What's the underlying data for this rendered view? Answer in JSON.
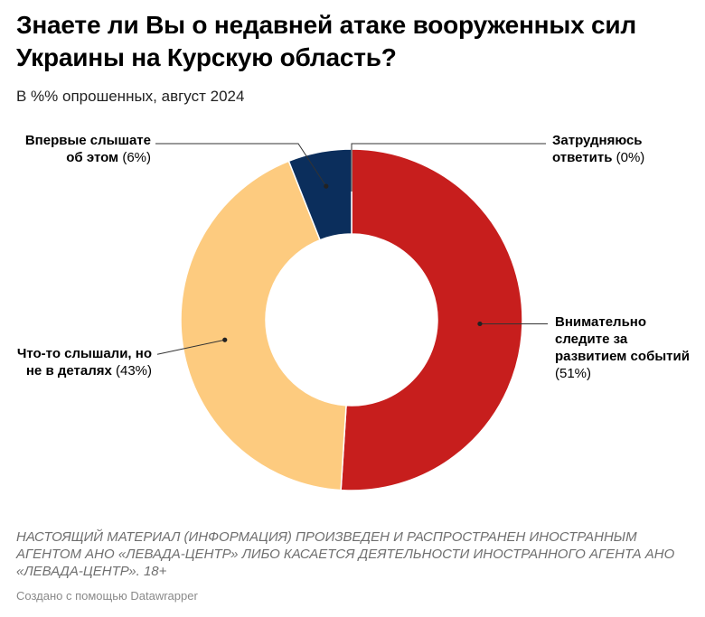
{
  "header": {
    "title": "Знаете ли Вы о недавней атаке вооруженных сил Украины на Курскую область?",
    "subtitle": "В %% опрошенных, август 2024"
  },
  "chart_data": {
    "type": "pie",
    "donut": true,
    "categories": [
      "Внимательно следите за развитием событий",
      "Что-то слышали, но не в деталях",
      "Впервые слышате об этом",
      "Затрудняюсь ответить"
    ],
    "values": [
      51,
      43,
      6,
      0
    ],
    "value_labels": [
      "(51%)",
      "(43%)",
      "(6%)",
      "(0%)"
    ],
    "label_lines": [
      [
        "Внимательно",
        "следите за",
        "развитием событий"
      ],
      [
        "Что-то слышали, но",
        "не в деталях"
      ],
      [
        "Впервые слышате",
        "об этом"
      ],
      [
        "Затрудняюсь",
        "ответить"
      ]
    ],
    "colors": [
      "#c71e1d",
      "#fdcb7f",
      "#0b2e5c",
      "#888888"
    ],
    "legend": "none"
  },
  "footer": {
    "notes": "НАСТОЯЩИЙ МАТЕРИАЛ (ИНФОРМАЦИЯ) ПРОИЗВЕДЕН И РАСПРОСТРАНЕН ИНОСТРАННЫМ АГЕНТОМ АНО «ЛЕВАДА-ЦЕНТР» ЛИБО КАСАЕТСЯ ДЕЯТЕЛЬНОСТИ ИНОСТРАННОГО АГЕНТА АНО «ЛЕВАДА-ЦЕНТР». 18+",
    "credit": "Создано с помощью Datawrapper"
  }
}
